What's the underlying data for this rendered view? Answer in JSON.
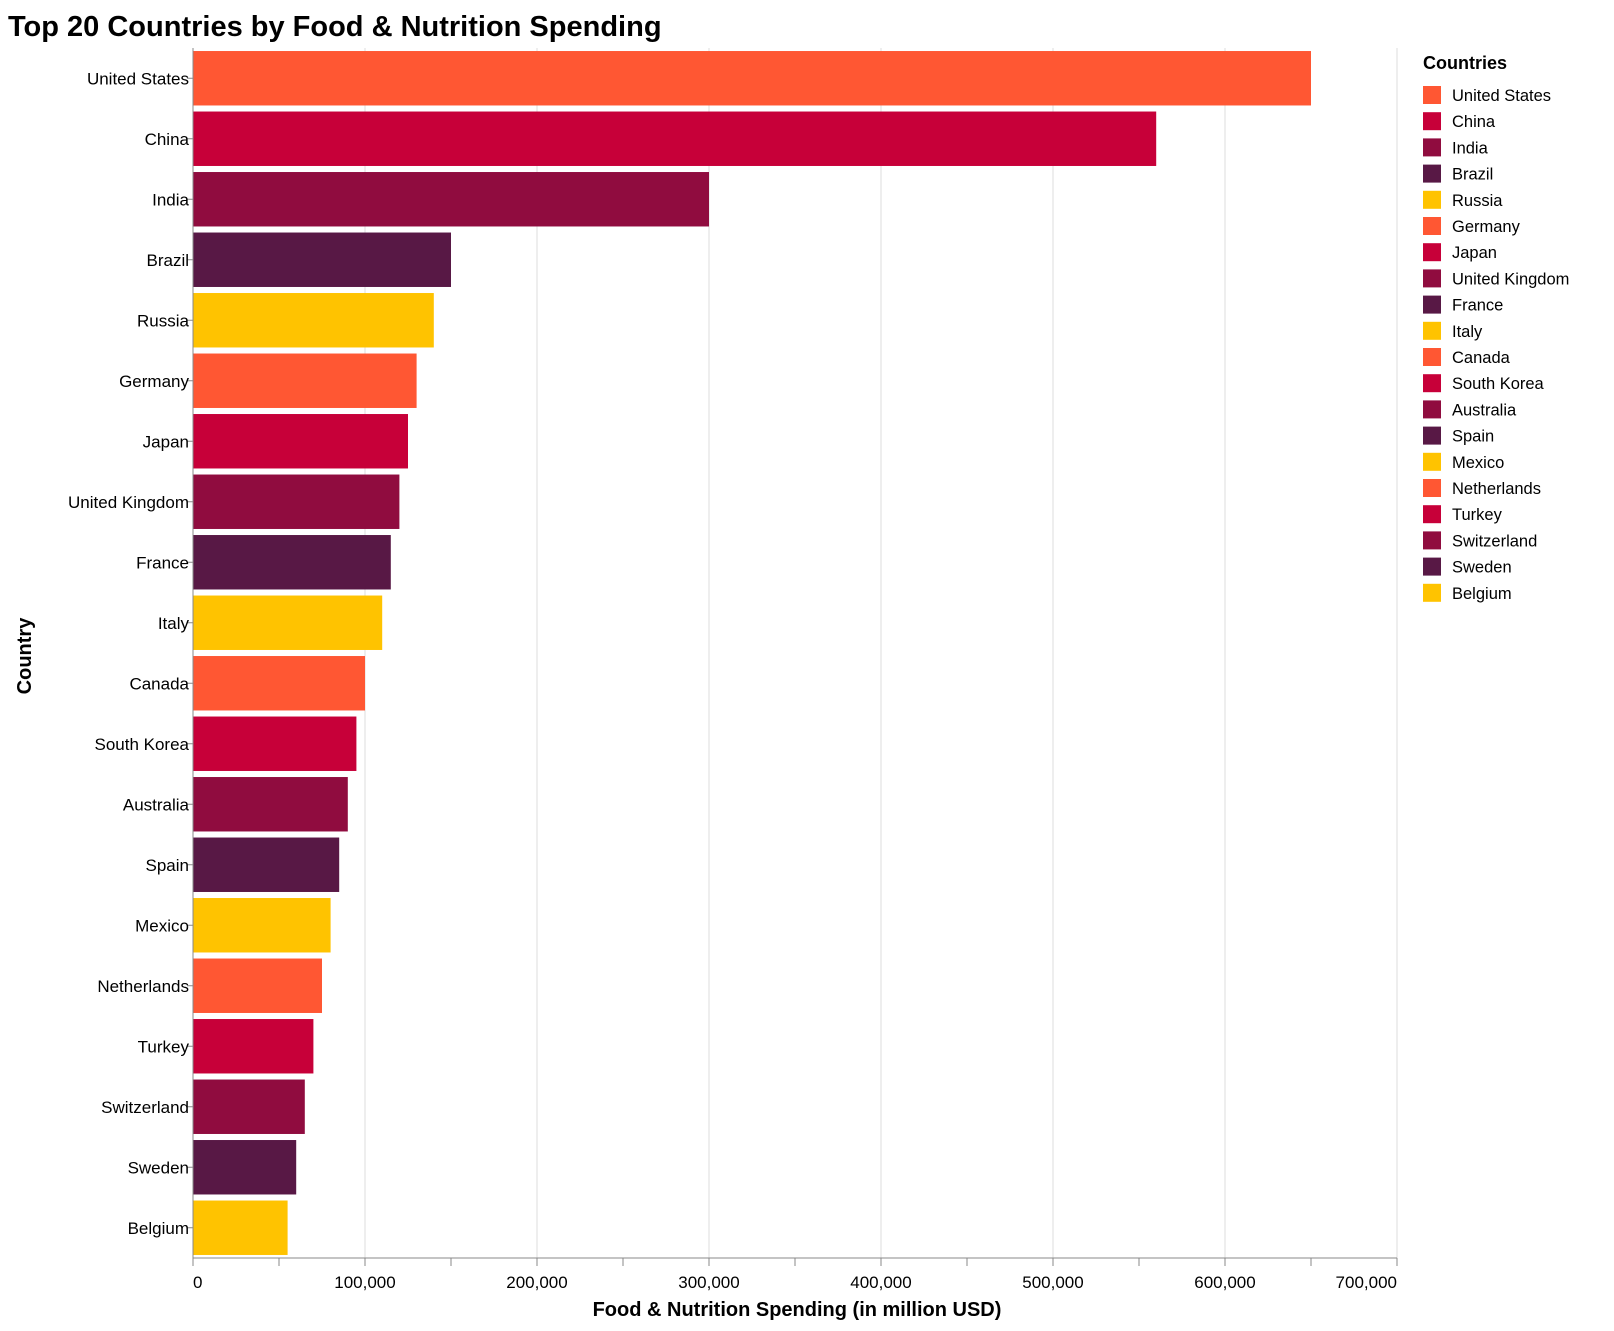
{
  "chart_data": {
    "type": "bar",
    "orientation": "horizontal",
    "title": "Top 20 Countries by Food & Nutrition Spending",
    "xlabel": "Food & Nutrition Spending (in million USD)",
    "ylabel": "Country",
    "xlim": [
      0,
      700000
    ],
    "x_ticks": [
      0,
      100000,
      200000,
      300000,
      400000,
      500000,
      600000,
      700000
    ],
    "x_tick_labels": [
      "0",
      "100,000",
      "200,000",
      "300,000",
      "400,000",
      "500,000",
      "600,000",
      "700,000"
    ],
    "grid": "vertical",
    "legend": {
      "title": "Countries",
      "placement": "right"
    },
    "categories": [
      "United States",
      "China",
      "India",
      "Brazil",
      "Russia",
      "Germany",
      "Japan",
      "United Kingdom",
      "France",
      "Italy",
      "Canada",
      "South Korea",
      "Australia",
      "Spain",
      "Mexico",
      "Netherlands",
      "Turkey",
      "Switzerland",
      "Sweden",
      "Belgium"
    ],
    "values": [
      650000,
      560000,
      300000,
      150000,
      140000,
      130000,
      125000,
      120000,
      115000,
      110000,
      100000,
      95000,
      90000,
      85000,
      80000,
      75000,
      70000,
      65000,
      60000,
      55000
    ],
    "colors": [
      "#ff5733",
      "#c70039",
      "#900c3f",
      "#581845",
      "#ffc300",
      "#ff5733",
      "#c70039",
      "#900c3f",
      "#581845",
      "#ffc300",
      "#ff5733",
      "#c70039",
      "#900c3f",
      "#581845",
      "#ffc300",
      "#ff5733",
      "#c70039",
      "#900c3f",
      "#581845",
      "#ffc300"
    ]
  }
}
